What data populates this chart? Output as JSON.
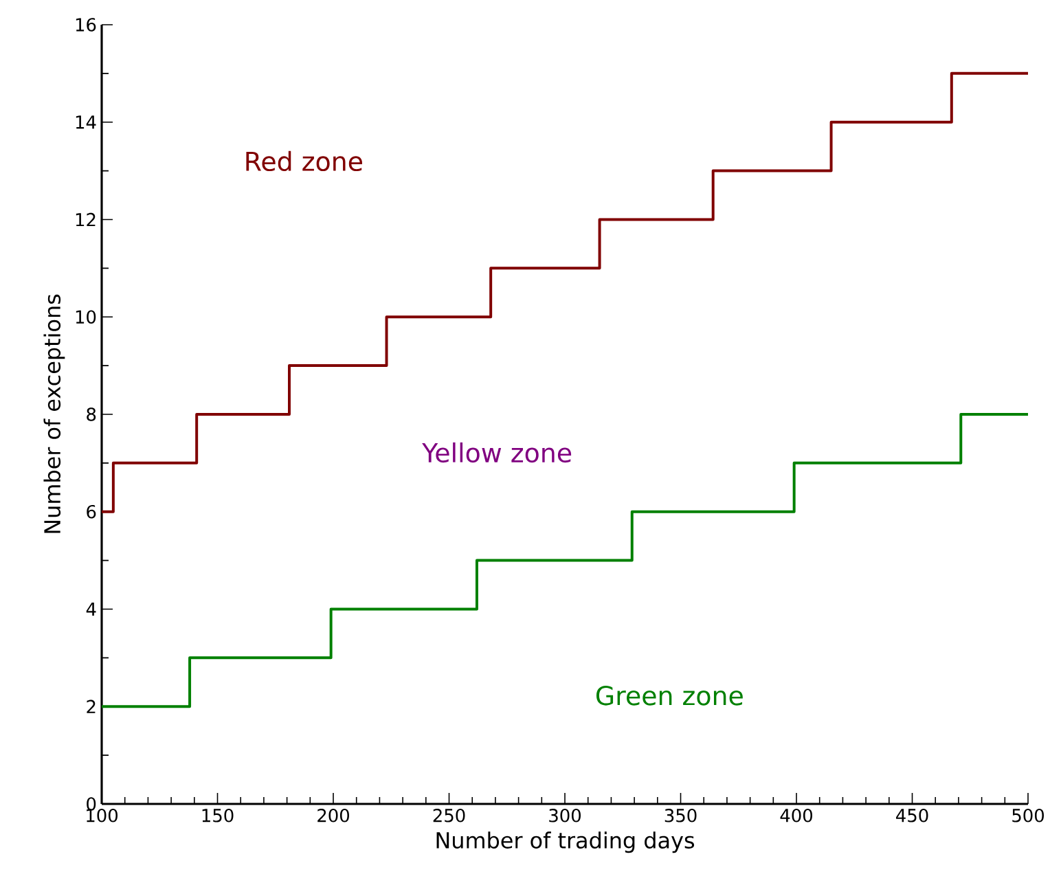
{
  "chart_data": {
    "type": "step",
    "xlabel": "Number of trading days",
    "ylabel": "Number of exceptions",
    "series": [
      {
        "color": "#800000",
        "x": [
          100,
          105,
          141,
          181,
          223,
          268,
          315,
          364,
          415,
          467,
          500
        ],
        "values": [
          6,
          7,
          8,
          9,
          10,
          11,
          12,
          13,
          14,
          15,
          15
        ]
      },
      {
        "color": "#008000",
        "x": [
          100,
          138,
          199,
          262,
          329,
          399,
          471,
          500
        ],
        "values": [
          2,
          3,
          4,
          5,
          6,
          7,
          8,
          8
        ]
      }
    ],
    "annotations": [
      "Red zone",
      "Yellow zone",
      "Green zone"
    ],
    "xlim": [
      100,
      500
    ],
    "ylim": [
      0,
      16
    ],
    "xticks": [
      100,
      150,
      200,
      250,
      300,
      350,
      400,
      450,
      500
    ],
    "yticks": [
      0,
      2,
      4,
      6,
      8,
      10,
      12,
      14,
      16
    ],
    "grid": false,
    "legend": false,
    "marker": "none",
    "line_style": "solid"
  }
}
